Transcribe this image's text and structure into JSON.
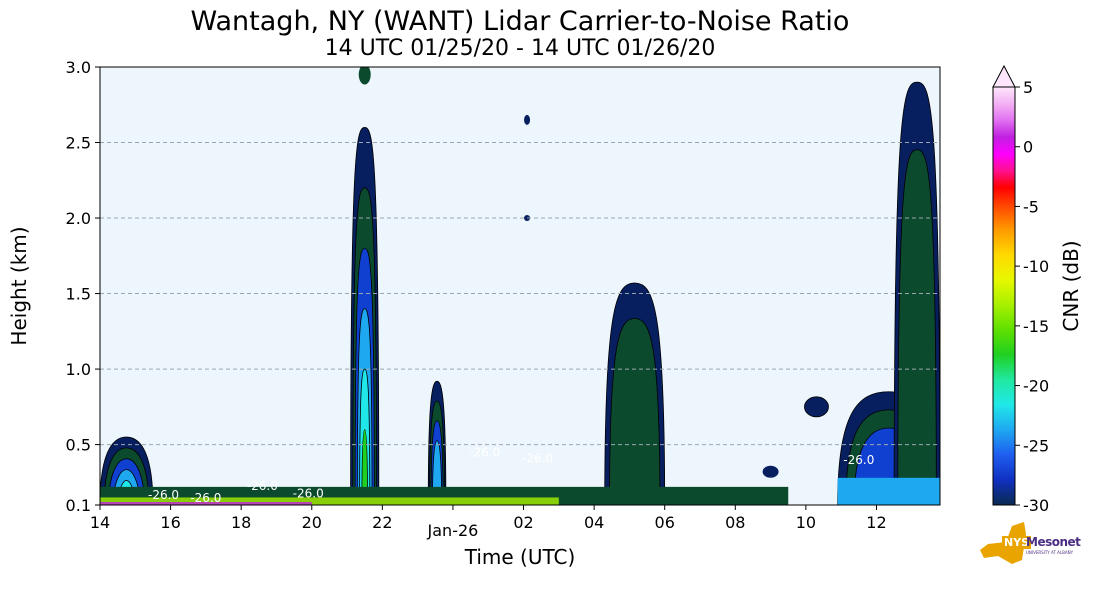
{
  "chart_data": {
    "type": "heatmap",
    "title": "Wantagh, NY (WANT) Lidar Carrier-to-Noise Ratio",
    "subtitle": "14 UTC 01/25/20 - 14 UTC 01/26/20",
    "xlabel": "Time (UTC)",
    "ylabel": "Height (km)",
    "colorbar_label": "CNR (dB)",
    "x_ticks": [
      "14",
      "16",
      "18",
      "20",
      "22",
      "Jan-26",
      "02",
      "04",
      "06",
      "08",
      "10",
      "12"
    ],
    "x_tick_hours": [
      14,
      16,
      18,
      20,
      22,
      24,
      26,
      28,
      30,
      32,
      34,
      36
    ],
    "xlim_hours": [
      14,
      37.8
    ],
    "y_ticks": [
      "0.1",
      "0.5",
      "1.0",
      "1.5",
      "2.0",
      "2.5",
      "3.0"
    ],
    "y_tick_values": [
      0.1,
      0.5,
      1.0,
      1.5,
      2.0,
      2.5,
      3.0
    ],
    "ylim": [
      0.1,
      3.0
    ],
    "colorbar_ticks": [
      "5",
      "0",
      "-5",
      "-10",
      "-15",
      "-20",
      "-25",
      "-30"
    ],
    "colorbar_values": [
      5,
      0,
      -5,
      -10,
      -15,
      -20,
      -25,
      -30
    ],
    "colorbar_range": [
      -30,
      5
    ],
    "colorbar_extend": "max",
    "grid": "horizontal dashed",
    "contour_labels": [
      {
        "text": "-26.0",
        "hour": 35.5,
        "km": 0.37
      },
      {
        "text": "-26.0",
        "hour": 18.6,
        "km": 0.2
      },
      {
        "text": "-26.0",
        "hour": 19.9,
        "km": 0.15
      },
      {
        "text": "-26.0",
        "hour": 24.9,
        "km": 0.42
      },
      {
        "text": "-26.0",
        "hour": 26.4,
        "km": 0.38
      },
      {
        "text": "-26.0",
        "hour": 15.8,
        "km": 0.14
      },
      {
        "text": "-26.0",
        "hour": 17.0,
        "km": 0.12
      }
    ],
    "features": [
      {
        "hour_start": 14.0,
        "hour_end": 15.5,
        "km_max": 0.55,
        "desc_level": -18
      },
      {
        "hour_start": 21.1,
        "hour_end": 21.9,
        "km_max": 2.6,
        "desc_level": -22
      },
      {
        "hour_start": 23.3,
        "hour_end": 23.8,
        "km_max": 0.92,
        "desc_level": -24
      },
      {
        "hour_start": 28.3,
        "hour_end": 30.0,
        "km_max": 1.57,
        "desc_level": -29
      },
      {
        "hour_start": 34.9,
        "hour_end": 37.8,
        "km_max": 0.85,
        "desc_level": -27
      },
      {
        "hour_start": 36.5,
        "hour_end": 37.8,
        "km_max": 2.9,
        "desc_level": -28
      }
    ]
  },
  "logo": {
    "nys": "NYS",
    "mesonet": "Mesonet",
    "sub": "UNIVERSITY AT ALBANY"
  },
  "colors": {
    "background": "#eef6fd",
    "navy": "#071f5f",
    "darkgreen": "#0c4a2e",
    "grid": "#9aa6b0"
  }
}
